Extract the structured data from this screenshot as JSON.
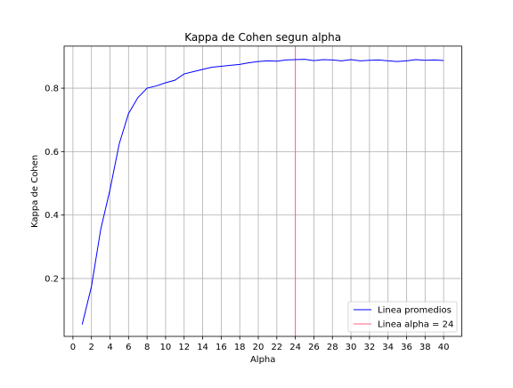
{
  "chart_data": {
    "type": "line",
    "title": "Kappa de Cohen segun alpha",
    "xlabel": "Alpha",
    "ylabel": "Kappa de Cohen",
    "xlim": [
      -0.95,
      41.95
    ],
    "ylim": [
      0.0175,
      0.9325
    ],
    "xticks": [
      0,
      2,
      4,
      6,
      8,
      10,
      12,
      14,
      16,
      18,
      20,
      22,
      24,
      26,
      28,
      30,
      32,
      34,
      36,
      38,
      40
    ],
    "yticks": [
      0.2,
      0.4,
      0.6,
      0.8
    ],
    "grid": true,
    "legend_position": "lower-right",
    "series": [
      {
        "name": "Linea promedios",
        "color": "#0000ff",
        "x": [
          1,
          2,
          3,
          4,
          5,
          6,
          7,
          8,
          9,
          10,
          11,
          12,
          13,
          14,
          15,
          16,
          17,
          18,
          19,
          20,
          21,
          22,
          23,
          24,
          25,
          26,
          27,
          28,
          29,
          30,
          31,
          32,
          33,
          34,
          35,
          36,
          37,
          38,
          39,
          40
        ],
        "y": [
          0.055,
          0.175,
          0.355,
          0.48,
          0.625,
          0.72,
          0.77,
          0.8,
          0.807,
          0.817,
          0.825,
          0.845,
          0.852,
          0.859,
          0.866,
          0.869,
          0.872,
          0.875,
          0.88,
          0.884,
          0.886,
          0.885,
          0.889,
          0.89,
          0.891,
          0.887,
          0.89,
          0.889,
          0.886,
          0.89,
          0.886,
          0.888,
          0.889,
          0.886,
          0.884,
          0.886,
          0.89,
          0.888,
          0.889,
          0.887
        ]
      },
      {
        "name": "Linea alpha = 24",
        "color": "#ff6680",
        "vline_x": 24
      }
    ]
  }
}
